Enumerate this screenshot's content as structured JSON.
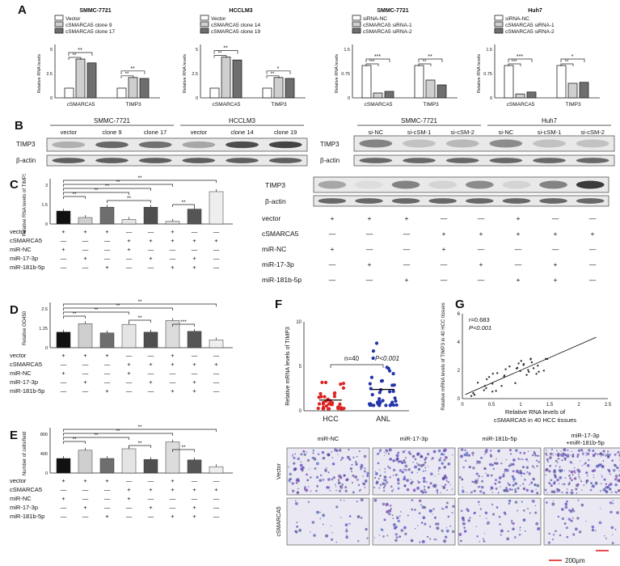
{
  "panels": {
    "A": {
      "letter": "A",
      "left": {
        "title": "SMMC-7721",
        "legend": [
          "Vector",
          "cSMARCA5 clone 9",
          "cSMARCA5 clone 17"
        ],
        "ylabel": "Relative RNA levels",
        "xcats": [
          "cSMARCA5",
          "TIMP3"
        ],
        "sig": [
          "**",
          "**",
          "**",
          "**"
        ]
      },
      "midleft": {
        "title": "HCCLM3",
        "legend": [
          "Vector",
          "cSMARCA5 clone 14",
          "cSMARCA5 clone 19"
        ],
        "ylabel": "Relative RNA levels",
        "xcats": [
          "cSMARCA5",
          "TIMP3"
        ],
        "sig": [
          "**",
          "**",
          "*",
          "**"
        ]
      },
      "midright": {
        "title": "SMMC-7721",
        "legend": [
          "siRNA-NC",
          "cSMARCA5 siRNA-1",
          "cSMARCA5 siRNA-2"
        ],
        "ylabel": "Relative RNA levels",
        "xcats": [
          "cSMARCA5",
          "TIMP3"
        ],
        "sig": [
          "***",
          "***",
          "**",
          "**"
        ]
      },
      "right": {
        "title": "Huh7",
        "legend": [
          "siRNA-NC",
          "cSMARCA5 siRNA-1",
          "cSMARCA5 siRNA-2"
        ],
        "ylabel": "Relative RNA levels",
        "xcats": [
          "cSMARCA5",
          "TIMP3"
        ],
        "sig": [
          "***",
          "***",
          "*",
          "**"
        ]
      }
    },
    "B": {
      "letter": "B",
      "left_groups": [
        "SMMC-7721",
        "HCCLM3"
      ],
      "left_lanes": [
        "vector",
        "clone 9",
        "clone 17",
        "vector",
        "clone 14",
        "clone 19"
      ],
      "right_groups": [
        "SMMC-7721",
        "Huh7"
      ],
      "right_lanes": [
        "si-NC",
        "si-cSM-1",
        "si-cSM-2",
        "si-NC",
        "si-cSM-1",
        "si-cSM-2"
      ],
      "rows": [
        "TIMP3",
        "β-actin"
      ]
    },
    "C": {
      "letter": "C",
      "ylabel": "Relative RNA levels of TIMP3",
      "sig": [
        "**",
        "**",
        "**",
        "**",
        "**",
        "**",
        "**"
      ],
      "blot_rows": [
        "TIMP3",
        "β-actin"
      ]
    },
    "D": {
      "letter": "D",
      "ylabel": "Relative OD450",
      "sig": [
        "**",
        "**",
        "**",
        "**",
        "**",
        "***"
      ]
    },
    "E": {
      "letter": "E",
      "ylabel": "Number of cells/field",
      "sig": [
        "**",
        "**",
        "**",
        "**",
        "**",
        "**"
      ]
    },
    "F": {
      "letter": "F",
      "ylabel": "Relative mRNA levels of TIMP3",
      "stat_n": "n=40",
      "stat_p": "P<0.001",
      "groups": [
        "HCC",
        "ANL"
      ]
    },
    "G": {
      "letter": "G",
      "r": "r=0.683",
      "p": "P<0.001",
      "ylabel": "Relative mRNA levels of TIMP3 in 40 HCC tissues",
      "xlabel_1": "Relative RNA levels of",
      "xlabel_2": "cSMARCA5 in 40 HCC tissues"
    },
    "micro": {
      "cols": [
        "miR-NC",
        "miR-17-3p",
        "miR-181b-5p",
        "miR-17-3p +miR-181b-5p"
      ],
      "rows": [
        "Vector",
        "cSMARCA5"
      ],
      "scale": "200μm"
    }
  },
  "conditions": {
    "labels": [
      "vector",
      "cSMARCA5",
      "miR-NC",
      "miR-17-3p",
      "miR-181b-5p"
    ],
    "signs": [
      [
        "+",
        "+",
        "+",
        "—",
        "—",
        "+",
        "—",
        "—"
      ],
      [
        "—",
        "—",
        "—",
        "+",
        "+",
        "+",
        "+",
        "+"
      ],
      [
        "+",
        "—",
        "—",
        "+",
        "—",
        "—",
        "—",
        "—"
      ],
      [
        "—",
        "+",
        "—",
        "—",
        "+",
        "—",
        "+",
        "—"
      ],
      [
        "—",
        "—",
        "+",
        "—",
        "—",
        "+",
        "+",
        "—"
      ]
    ]
  },
  "chart_data": [
    {
      "type": "bar",
      "title": "SMMC-7721",
      "ylabel": "Relative RNA levels",
      "categories": [
        "cSMARCA5",
        "TIMP3"
      ],
      "series": [
        {
          "name": "Vector",
          "values": [
            1.0,
            1.0
          ]
        },
        {
          "name": "cSMARCA5 clone 9",
          "values": [
            4.0,
            2.1
          ]
        },
        {
          "name": "cSMARCA5 clone 17",
          "values": [
            3.6,
            2.0
          ]
        }
      ],
      "ylim": [
        0,
        5
      ]
    },
    {
      "type": "bar",
      "title": "HCCLM3",
      "ylabel": "Relative RNA levels",
      "categories": [
        "cSMARCA5",
        "TIMP3"
      ],
      "series": [
        {
          "name": "Vector",
          "values": [
            1.0,
            1.0
          ]
        },
        {
          "name": "cSMARCA5 clone 14",
          "values": [
            4.2,
            2.1
          ]
        },
        {
          "name": "cSMARCA5 clone 19",
          "values": [
            3.9,
            2.0
          ]
        }
      ],
      "ylim": [
        0,
        5
      ]
    },
    {
      "type": "bar",
      "title": "SMMC-7721",
      "ylabel": "Relative RNA levels",
      "categories": [
        "cSMARCA5",
        "TIMP3"
      ],
      "series": [
        {
          "name": "siRNA-NC",
          "values": [
            1.0,
            1.0
          ]
        },
        {
          "name": "cSMARCA5 siRNA-1",
          "values": [
            0.15,
            0.55
          ]
        },
        {
          "name": "cSMARCA5 siRNA-2",
          "values": [
            0.2,
            0.4
          ]
        }
      ],
      "ylim": [
        0,
        1.5
      ]
    },
    {
      "type": "bar",
      "title": "Huh7",
      "ylabel": "Relative RNA levels",
      "categories": [
        "cSMARCA5",
        "TIMP3"
      ],
      "series": [
        {
          "name": "siRNA-NC",
          "values": [
            1.0,
            1.0
          ]
        },
        {
          "name": "cSMARCA5 siRNA-1",
          "values": [
            0.12,
            0.45
          ]
        },
        {
          "name": "cSMARCA5 siRNA-2",
          "values": [
            0.18,
            0.48
          ]
        }
      ],
      "ylim": [
        0,
        1.5
      ]
    },
    {
      "type": "bar",
      "ylabel": "Relative RNA levels of TIMP3",
      "values": [
        1.0,
        0.5,
        1.3,
        0.35,
        1.3,
        0.2,
        1.15,
        2.5
      ],
      "ylim": [
        0,
        3
      ]
    },
    {
      "type": "bar",
      "ylabel": "Relative OD450",
      "values": [
        1.0,
        1.55,
        0.95,
        1.5,
        1.0,
        1.75,
        1.05,
        0.5
      ],
      "ylim": [
        0,
        2.5
      ]
    },
    {
      "type": "bar",
      "ylabel": "Number of cells/field",
      "values": [
        300,
        470,
        300,
        500,
        280,
        640,
        270,
        130
      ],
      "ylim": [
        0,
        800
      ]
    },
    {
      "type": "scatter",
      "ylabel": "Relative mRNA levels of TIMP3",
      "categories": [
        "HCC",
        "ANL"
      ],
      "series": [
        {
          "name": "HCC",
          "mean": 1.2,
          "spread": [
            0.2,
            3.5
          ]
        },
        {
          "name": "ANL",
          "mean": 2.4,
          "spread": [
            0.6,
            9.5
          ]
        }
      ],
      "ylim": [
        0,
        10
      ]
    },
    {
      "type": "scatter",
      "ylabel": "Relative mRNA levels of TIMP3 in 40 HCC tissues",
      "xlabel": "Relative RNA levels of cSMARCA5 in 40 HCC tissues",
      "xlim": [
        0,
        2.5
      ],
      "ylim": [
        0,
        6
      ],
      "fit": {
        "slope": 1.8,
        "intercept": 0.2
      }
    }
  ]
}
